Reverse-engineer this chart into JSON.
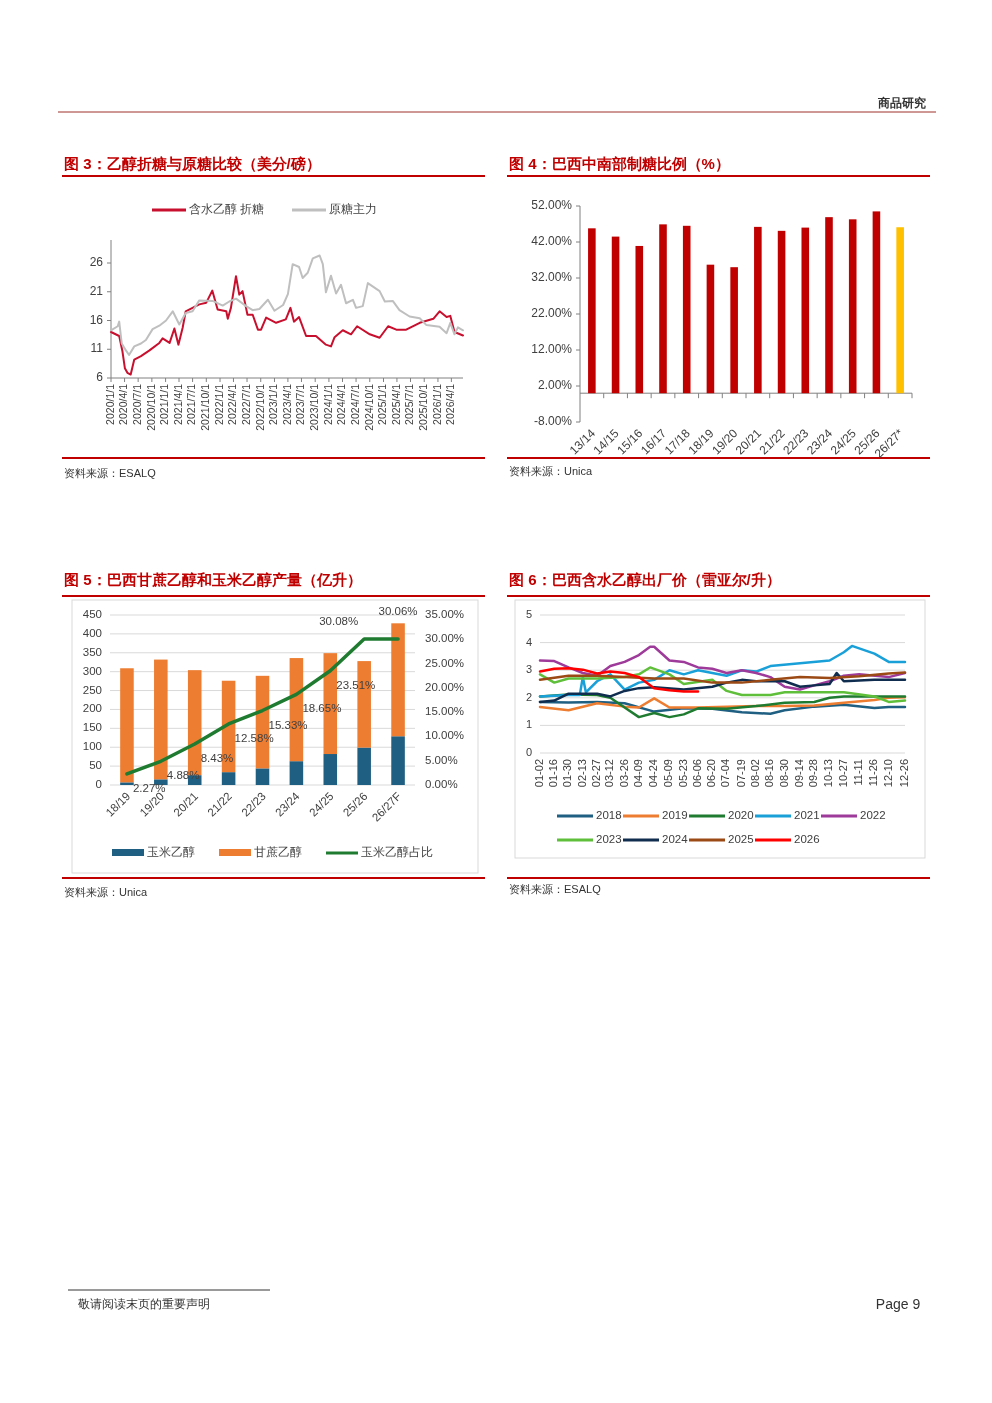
{
  "chart_data": [
    {
      "type": "line",
      "title": "图 3：乙醇折糖与原糖比较（美分/磅）",
      "legend": "top",
      "xlim": [
        "2020-01-01",
        "2026-06-18"
      ],
      "xticks": [
        {
          "value": "2020-01-01",
          "label": "2020/1/1"
        },
        {
          "value": "2020-04-01",
          "label": "2020/4/1"
        },
        {
          "value": "2020-07-01",
          "label": "2020/7/1"
        },
        {
          "value": "2020-10-01",
          "label": "2020/10/1"
        },
        {
          "value": "2021-01-01",
          "label": "2021/1/1"
        },
        {
          "value": "2021-04-01",
          "label": "2021/4/1"
        },
        {
          "value": "2021-07-01",
          "label": "2021/7/1"
        },
        {
          "value": "2021-10-01",
          "label": "2021/10/1"
        },
        {
          "value": "2022-01-01",
          "label": "2022/1/1"
        },
        {
          "value": "2022-04-01",
          "label": "2022/4/1"
        },
        {
          "value": "2022-07-01",
          "label": "2022/7/1"
        },
        {
          "value": "2022-10-01",
          "label": "2022/10/1"
        },
        {
          "value": "2023-01-01",
          "label": "2023/1/1"
        },
        {
          "value": "2023-04-01",
          "label": "2023/4/1"
        },
        {
          "value": "2023-07-01",
          "label": "2023/7/1"
        },
        {
          "value": "2023-10-01",
          "label": "2023/10/1"
        },
        {
          "value": "2024-01-01",
          "label": "2024/1/1"
        },
        {
          "value": "2024-04-01",
          "label": "2024/4/1"
        },
        {
          "value": "2024-07-01",
          "label": "2024/7/1"
        },
        {
          "value": "2024-10-01",
          "label": "2024/10/1"
        },
        {
          "value": "2025-01-01",
          "label": "2025/1/1"
        },
        {
          "value": "2025-04-01",
          "label": "2025/4/1"
        },
        {
          "value": "2025-07-01",
          "label": "2025/7/1"
        },
        {
          "value": "2025-10-01",
          "label": "2025/10/1"
        },
        {
          "value": "2026-01-01",
          "label": "2026/1/1"
        },
        {
          "value": "2026-04-01",
          "label": "2026/4/1"
        }
      ],
      "ylim": [
        6,
        30
      ],
      "yticks": [
        6,
        11,
        16,
        21,
        26
      ],
      "series": [
        {
          "name": "含水乙醇 折糖",
          "color": "#c8102e",
          "x": [
            "2020-01-01",
            "2020-02-25",
            "2020-03-18",
            "2020-04-03",
            "2020-04-20",
            "2020-05-12",
            "2020-06-05",
            "2020-07-20",
            "2020-09-15",
            "2020-11-20",
            "2020-12-12",
            "2021-01-28",
            "2021-03-01",
            "2021-03-28",
            "2021-04-25",
            "2021-05-16",
            "2021-08-15",
            "2021-10-01",
            "2021-11-10",
            "2021-12-16",
            "2022-02-12",
            "2022-02-22",
            "2022-03-15",
            "2022-04-18",
            "2022-05-10",
            "2022-06-01",
            "2022-07-04",
            "2022-08-08",
            "2022-09-12",
            "2022-10-03",
            "2022-11-06",
            "2023-01-12",
            "2023-03-18",
            "2023-04-18",
            "2023-05-12",
            "2023-06-15",
            "2023-08-01",
            "2023-10-06",
            "2023-12-12",
            "2024-01-15",
            "2024-02-08",
            "2024-04-03",
            "2024-05-28",
            "2024-07-08",
            "2024-10-01",
            "2024-12-06",
            "2025-02-01",
            "2025-03-28",
            "2025-06-02",
            "2025-09-01",
            "2025-12-01",
            "2026-01-12",
            "2026-02-28",
            "2026-03-25",
            "2026-04-22",
            "2026-06-18"
          ],
          "values": [
            14.0,
            13.3,
            10.6,
            7.7,
            6.9,
            6.6,
            9.2,
            9.8,
            10.8,
            12.1,
            12.9,
            12.1,
            14.6,
            11.8,
            14.7,
            17.6,
            18.8,
            19.1,
            21.2,
            17.9,
            17.6,
            16.3,
            18.2,
            23.7,
            20.5,
            21.1,
            17.0,
            17.0,
            14.4,
            14.4,
            16.5,
            15.6,
            16.2,
            18.2,
            15.8,
            16.6,
            13.3,
            13.3,
            11.8,
            11.5,
            13.1,
            14.3,
            13.6,
            15.0,
            13.6,
            13.0,
            15.0,
            14.4,
            14.4,
            15.6,
            16.3,
            17.6,
            16.6,
            16.8,
            14.0,
            13.4
          ]
        },
        {
          "name": "原糖主力",
          "color": "#bfbfbf",
          "x": [
            "2020-01-01",
            "2020-02-15",
            "2020-02-25",
            "2020-03-13",
            "2020-04-10",
            "2020-05-01",
            "2020-06-05",
            "2020-07-20",
            "2020-08-22",
            "2020-10-06",
            "2020-11-20",
            "2021-01-04",
            "2021-02-18",
            "2021-04-03",
            "2021-05-16",
            "2021-07-01",
            "2021-08-15",
            "2021-11-13",
            "2022-01-19",
            "2022-03-04",
            "2022-04-18",
            "2022-06-25",
            "2022-08-08",
            "2022-09-22",
            "2022-11-18",
            "2023-01-01",
            "2023-02-28",
            "2023-04-01",
            "2023-05-03",
            "2023-06-15",
            "2023-07-09",
            "2023-08-12",
            "2023-09-15",
            "2023-10-31",
            "2023-11-21",
            "2023-12-12",
            "2024-01-15",
            "2024-02-18",
            "2024-03-22",
            "2024-04-25",
            "2024-06-10",
            "2024-07-01",
            "2024-08-15",
            "2024-09-18",
            "2024-12-06",
            "2025-01-10",
            "2025-03-04",
            "2025-04-18",
            "2025-06-25",
            "2025-09-01",
            "2025-10-16",
            "2026-01-12",
            "2026-02-28",
            "2026-03-25",
            "2026-04-22",
            "2026-05-15",
            "2026-06-18"
          ],
          "values": [
            14.3,
            15.0,
            15.8,
            12.0,
            10.8,
            10.0,
            11.5,
            12.0,
            12.6,
            14.5,
            15.1,
            16.0,
            17.6,
            15.3,
            17.3,
            17.6,
            19.5,
            19.4,
            18.6,
            19.3,
            19.8,
            18.5,
            17.8,
            18.0,
            19.6,
            17.7,
            18.7,
            20.6,
            25.8,
            25.3,
            23.4,
            24.3,
            26.8,
            27.3,
            25.8,
            20.9,
            23.8,
            20.7,
            22.2,
            19.0,
            19.6,
            18.2,
            18.5,
            22.5,
            21.1,
            19.3,
            19.4,
            17.8,
            16.7,
            16.4,
            15.2,
            14.9,
            13.8,
            15.6,
            13.6,
            14.8,
            14.3
          ]
        }
      ],
      "annotations": [
        "资料来源：ESALQ",
        "商品研究"
      ]
    },
    {
      "type": "bar",
      "title": "图 4：巴西中南部制糖比例（%）",
      "categories": [
        "13/14",
        "14/15",
        "15/16",
        "16/17",
        "17/18",
        "18/19",
        "19/20",
        "20/21",
        "21/22",
        "22/23",
        "23/24",
        "24/25",
        "25/26",
        "26/27*"
      ],
      "values": [
        45.8,
        43.5,
        40.9,
        46.9,
        46.5,
        35.7,
        35.0,
        46.2,
        45.1,
        46.0,
        48.9,
        48.3,
        50.5,
        46.1
      ],
      "colors": [
        "#c00000",
        "#c00000",
        "#c00000",
        "#c00000",
        "#c00000",
        "#c00000",
        "#c00000",
        "#c00000",
        "#c00000",
        "#c00000",
        "#c00000",
        "#c00000",
        "#c00000",
        "#ffc000"
      ],
      "ylim": [
        -8,
        52
      ],
      "yticks": [
        {
          "value": -8,
          "label": "-8.00%"
        },
        {
          "value": 2,
          "label": "2.00%"
        },
        {
          "value": 12,
          "label": "12.00%"
        },
        {
          "value": 22,
          "label": "22.00%"
        },
        {
          "value": 32,
          "label": "32.00%"
        },
        {
          "value": 42,
          "label": "42.00%"
        },
        {
          "value": 52,
          "label": "52.00%"
        }
      ],
      "annotations": [
        "资料来源：Unica"
      ]
    },
    {
      "type": "bar",
      "stacked": true,
      "title": "图 5：巴西甘蔗乙醇和玉米乙醇产量（亿升）",
      "legend": "bottom",
      "grid": "y",
      "categories": [
        "18/19",
        "19/20",
        "20/21",
        "21/22",
        "22/23",
        "23/24",
        "24/25",
        "25/26",
        "26/27F"
      ],
      "ylim": [
        0,
        450
      ],
      "yticks": [
        0,
        50,
        100,
        150,
        200,
        250,
        300,
        350,
        400,
        450
      ],
      "y2lim": [
        0,
        35
      ],
      "y2ticks": [
        {
          "value": 0,
          "label": "0.00%"
        },
        {
          "value": 5,
          "label": "5.00%"
        },
        {
          "value": 10,
          "label": "10.00%"
        },
        {
          "value": 15,
          "label": "15.00%"
        },
        {
          "value": 20,
          "label": "20.00%"
        },
        {
          "value": 25,
          "label": "25.00%"
        },
        {
          "value": 30,
          "label": "30.00%"
        },
        {
          "value": 35,
          "label": "35.00%"
        }
      ],
      "series": [
        {
          "name": "玉米乙醇",
          "color": "#1f5f82",
          "values": [
            7,
            15,
            26,
            34,
            44,
            63,
            82,
            99,
            129
          ]
        },
        {
          "name": "甘蔗乙醇",
          "color": "#ed7d31",
          "values": [
            302,
            317,
            278,
            242,
            245,
            273,
            267,
            229,
            299
          ]
        },
        {
          "name": "玉米乙醇占比",
          "type": "line",
          "axis": "y2",
          "color": "#1e7b30",
          "values": [
            2.27,
            4.88,
            8.43,
            12.58,
            15.33,
            18.65,
            23.51,
            30.08,
            30.06
          ],
          "value_labels": [
            "2.27%",
            "4.88%",
            "8.43%",
            "12.58%",
            "15.33%",
            "18.65%",
            "23.51%",
            "30.08%",
            "30.06%"
          ]
        }
      ],
      "annotations": [
        "资料来源：Unica"
      ]
    },
    {
      "type": "line",
      "title": "图 6：巴西含水乙醇出厂价（雷亚尔/升）",
      "legend": "bottom",
      "grid": "y",
      "xlim": [
        "--01-02",
        "--12-26"
      ],
      "xticks": [
        {
          "value": "--01-02",
          "label": "01-02"
        },
        {
          "value": "--01-16",
          "label": "01-16"
        },
        {
          "value": "--01-30",
          "label": "01-30"
        },
        {
          "value": "--02-13",
          "label": "02-13"
        },
        {
          "value": "--02-27",
          "label": "02-27"
        },
        {
          "value": "--03-12",
          "label": "03-12"
        },
        {
          "value": "--03-26",
          "label": "03-26"
        },
        {
          "value": "--04-09",
          "label": "04-09"
        },
        {
          "value": "--04-24",
          "label": "04-24"
        },
        {
          "value": "--05-09",
          "label": "05-09"
        },
        {
          "value": "--05-23",
          "label": "05-23"
        },
        {
          "value": "--06-06",
          "label": "06-06"
        },
        {
          "value": "--06-20",
          "label": "06-20"
        },
        {
          "value": "--07-04",
          "label": "07-04"
        },
        {
          "value": "--07-19",
          "label": "07-19"
        },
        {
          "value": "--08-02",
          "label": "08-02"
        },
        {
          "value": "--08-16",
          "label": "08-16"
        },
        {
          "value": "--08-30",
          "label": "08-30"
        },
        {
          "value": "--09-14",
          "label": "09-14"
        },
        {
          "value": "--09-28",
          "label": "09-28"
        },
        {
          "value": "--10-13",
          "label": "10-13"
        },
        {
          "value": "--10-27",
          "label": "10-27"
        },
        {
          "value": "--11-11",
          "label": "11-11"
        },
        {
          "value": "--11-26",
          "label": "11-26"
        },
        {
          "value": "--12-10",
          "label": "12-10"
        },
        {
          "value": "--12-26",
          "label": "12-26"
        }
      ],
      "ylim": [
        0,
        5
      ],
      "yticks": [
        0,
        1,
        2,
        3,
        4,
        5
      ],
      "series": [
        {
          "name": "2018",
          "color": "#1f5f82",
          "x": [
            "--01-02",
            "--01-30",
            "--02-27",
            "--03-26",
            "--04-24",
            "--05-23",
            "--06-20",
            "--07-19",
            "--08-16",
            "--08-30",
            "--09-28",
            "--10-27",
            "--11-26",
            "--12-10",
            "--12-26"
          ],
          "values": [
            1.85,
            1.83,
            1.85,
            1.8,
            1.5,
            1.62,
            1.6,
            1.48,
            1.42,
            1.55,
            1.68,
            1.75,
            1.63,
            1.67,
            1.67
          ]
        },
        {
          "name": "2019",
          "color": "#ed7d31",
          "x": [
            "--01-02",
            "--01-30",
            "--02-27",
            "--03-26",
            "--04-09",
            "--04-24",
            "--05-09",
            "--06-06",
            "--08-02",
            "--08-30",
            "--09-28",
            "--10-27",
            "--11-26",
            "--12-10",
            "--12-26"
          ],
          "values": [
            1.67,
            1.55,
            1.8,
            1.68,
            1.65,
            1.98,
            1.65,
            1.65,
            1.7,
            1.7,
            1.72,
            1.82,
            1.92,
            2.0,
            2.02
          ]
        },
        {
          "name": "2020",
          "color": "#1e7b30",
          "x": [
            "--01-02",
            "--01-30",
            "--02-27",
            "--03-12",
            "--03-26",
            "--04-09",
            "--04-24",
            "--05-09",
            "--05-23",
            "--06-06",
            "--07-04",
            "--08-02",
            "--08-30",
            "--09-28",
            "--10-13",
            "--10-27",
            "--11-26",
            "--12-26"
          ],
          "values": [
            2.05,
            2.12,
            2.1,
            2.0,
            1.65,
            1.3,
            1.45,
            1.3,
            1.4,
            1.62,
            1.6,
            1.7,
            1.82,
            1.85,
            2.0,
            2.05,
            2.05,
            2.05
          ]
        },
        {
          "name": "2021",
          "color": "#1aa0d8",
          "x": [
            "--01-02",
            "--01-30",
            "--02-10",
            "--02-13",
            "--02-16",
            "--02-27",
            "--03-12",
            "--03-26",
            "--04-09",
            "--04-24",
            "--05-09",
            "--05-23",
            "--06-06",
            "--07-04",
            "--07-19",
            "--08-02",
            "--08-16",
            "--09-14",
            "--10-13",
            "--10-27",
            "--11-04",
            "--11-26",
            "--12-10",
            "--12-26"
          ],
          "values": [
            2.05,
            2.1,
            2.1,
            2.75,
            2.2,
            2.6,
            2.85,
            2.3,
            2.55,
            2.65,
            3.0,
            2.85,
            3.0,
            2.8,
            3.0,
            2.95,
            3.15,
            3.25,
            3.35,
            3.65,
            3.88,
            3.6,
            3.3,
            3.3
          ]
        },
        {
          "name": "2022",
          "color": "#9e3a9a",
          "x": [
            "--01-02",
            "--01-16",
            "--01-30",
            "--02-13",
            "--02-27",
            "--03-12",
            "--03-26",
            "--04-09",
            "--04-20",
            "--04-24",
            "--05-09",
            "--05-23",
            "--06-06",
            "--06-20",
            "--07-04",
            "--07-19",
            "--08-02",
            "--08-16",
            "--08-30",
            "--09-14",
            "--09-28",
            "--10-13",
            "--10-27",
            "--11-11",
            "--12-10",
            "--12-26"
          ],
          "values": [
            3.35,
            3.33,
            3.1,
            2.9,
            2.8,
            3.15,
            3.3,
            3.55,
            3.85,
            3.85,
            3.35,
            3.3,
            3.1,
            3.05,
            2.9,
            3.0,
            2.9,
            2.75,
            2.4,
            2.3,
            2.45,
            2.6,
            2.8,
            2.85,
            2.75,
            2.9
          ]
        },
        {
          "name": "2023",
          "color": "#5fbf3a",
          "x": [
            "--01-02",
            "--01-16",
            "--01-30",
            "--02-27",
            "--03-26",
            "--04-09",
            "--04-20",
            "--05-09",
            "--05-23",
            "--06-20",
            "--07-04",
            "--07-19",
            "--08-16",
            "--08-30",
            "--09-28",
            "--10-27",
            "--11-26",
            "--12-10",
            "--12-26"
          ],
          "values": [
            2.85,
            2.55,
            2.7,
            2.7,
            2.75,
            2.85,
            3.1,
            2.85,
            2.5,
            2.65,
            2.25,
            2.1,
            2.1,
            2.2,
            2.2,
            2.2,
            2.05,
            1.85,
            1.9
          ]
        },
        {
          "name": "2024",
          "color": "#102d4f",
          "x": [
            "--01-02",
            "--01-16",
            "--01-30",
            "--02-27",
            "--03-12",
            "--03-26",
            "--04-09",
            "--04-24",
            "--05-23",
            "--06-20",
            "--07-04",
            "--07-19",
            "--08-02",
            "--08-30",
            "--09-14",
            "--09-28",
            "--10-13",
            "--10-20",
            "--10-27",
            "--11-26",
            "--12-26"
          ],
          "values": [
            1.85,
            1.9,
            2.15,
            2.15,
            2.05,
            2.25,
            2.35,
            2.38,
            2.3,
            2.4,
            2.55,
            2.65,
            2.6,
            2.6,
            2.4,
            2.45,
            2.5,
            2.9,
            2.6,
            2.65,
            2.65
          ]
        },
        {
          "name": "2025",
          "color": "#9b4a15",
          "x": [
            "--01-02",
            "--01-30",
            "--02-27",
            "--03-26",
            "--04-24",
            "--05-23",
            "--06-20",
            "--07-19",
            "--08-16",
            "--09-14",
            "--10-13",
            "--11-11",
            "--12-10",
            "--12-26"
          ],
          "values": [
            2.65,
            2.8,
            2.8,
            2.75,
            2.7,
            2.7,
            2.55,
            2.55,
            2.65,
            2.75,
            2.72,
            2.78,
            2.88,
            2.92
          ]
        },
        {
          "name": "2026",
          "color": "#ff0000",
          "x": [
            "--01-02",
            "--01-16",
            "--01-30",
            "--02-13",
            "--02-27",
            "--03-12",
            "--03-26",
            "--04-09",
            "--04-24",
            "--05-09",
            "--05-23",
            "--06-06"
          ],
          "values": [
            2.95,
            3.05,
            3.07,
            3.02,
            2.88,
            2.95,
            2.9,
            2.75,
            2.35,
            2.27,
            2.23,
            2.23
          ]
        }
      ],
      "annotations": [
        "资料来源：ESALQ",
        "敬请阅读末页的重要声明",
        "Page 9"
      ]
    }
  ]
}
